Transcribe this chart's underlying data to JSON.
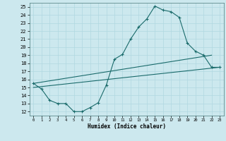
{
  "title": "",
  "xlabel": "Humidex (Indice chaleur)",
  "ylabel": "",
  "bg_color": "#cce8ee",
  "line_color": "#1a6b6b",
  "grid_color": "#b0d8e0",
  "xlim": [
    -0.5,
    23.5
  ],
  "ylim": [
    11.5,
    25.5
  ],
  "xticks": [
    0,
    1,
    2,
    3,
    4,
    5,
    6,
    7,
    8,
    9,
    10,
    11,
    12,
    13,
    14,
    15,
    16,
    17,
    18,
    19,
    20,
    21,
    22,
    23
  ],
  "yticks": [
    12,
    13,
    14,
    15,
    16,
    17,
    18,
    19,
    20,
    21,
    22,
    23,
    24,
    25
  ],
  "curve1_x": [
    0,
    1,
    2,
    3,
    4,
    5,
    6,
    7,
    8,
    9,
    10,
    11,
    12,
    13,
    14,
    15,
    16,
    17,
    18,
    19,
    20,
    21,
    22,
    23
  ],
  "curve1_y": [
    15.5,
    14.8,
    13.4,
    13.0,
    13.0,
    12.0,
    12.0,
    12.5,
    13.1,
    15.3,
    18.5,
    19.1,
    21.0,
    22.5,
    23.5,
    25.1,
    24.6,
    24.4,
    23.7,
    20.5,
    19.5,
    19.0,
    17.5,
    17.5
  ],
  "line2_x": [
    0,
    22
  ],
  "line2_y": [
    15.5,
    19.0
  ],
  "line3_x": [
    0,
    23
  ],
  "line3_y": [
    15.0,
    17.5
  ],
  "marker": "+"
}
